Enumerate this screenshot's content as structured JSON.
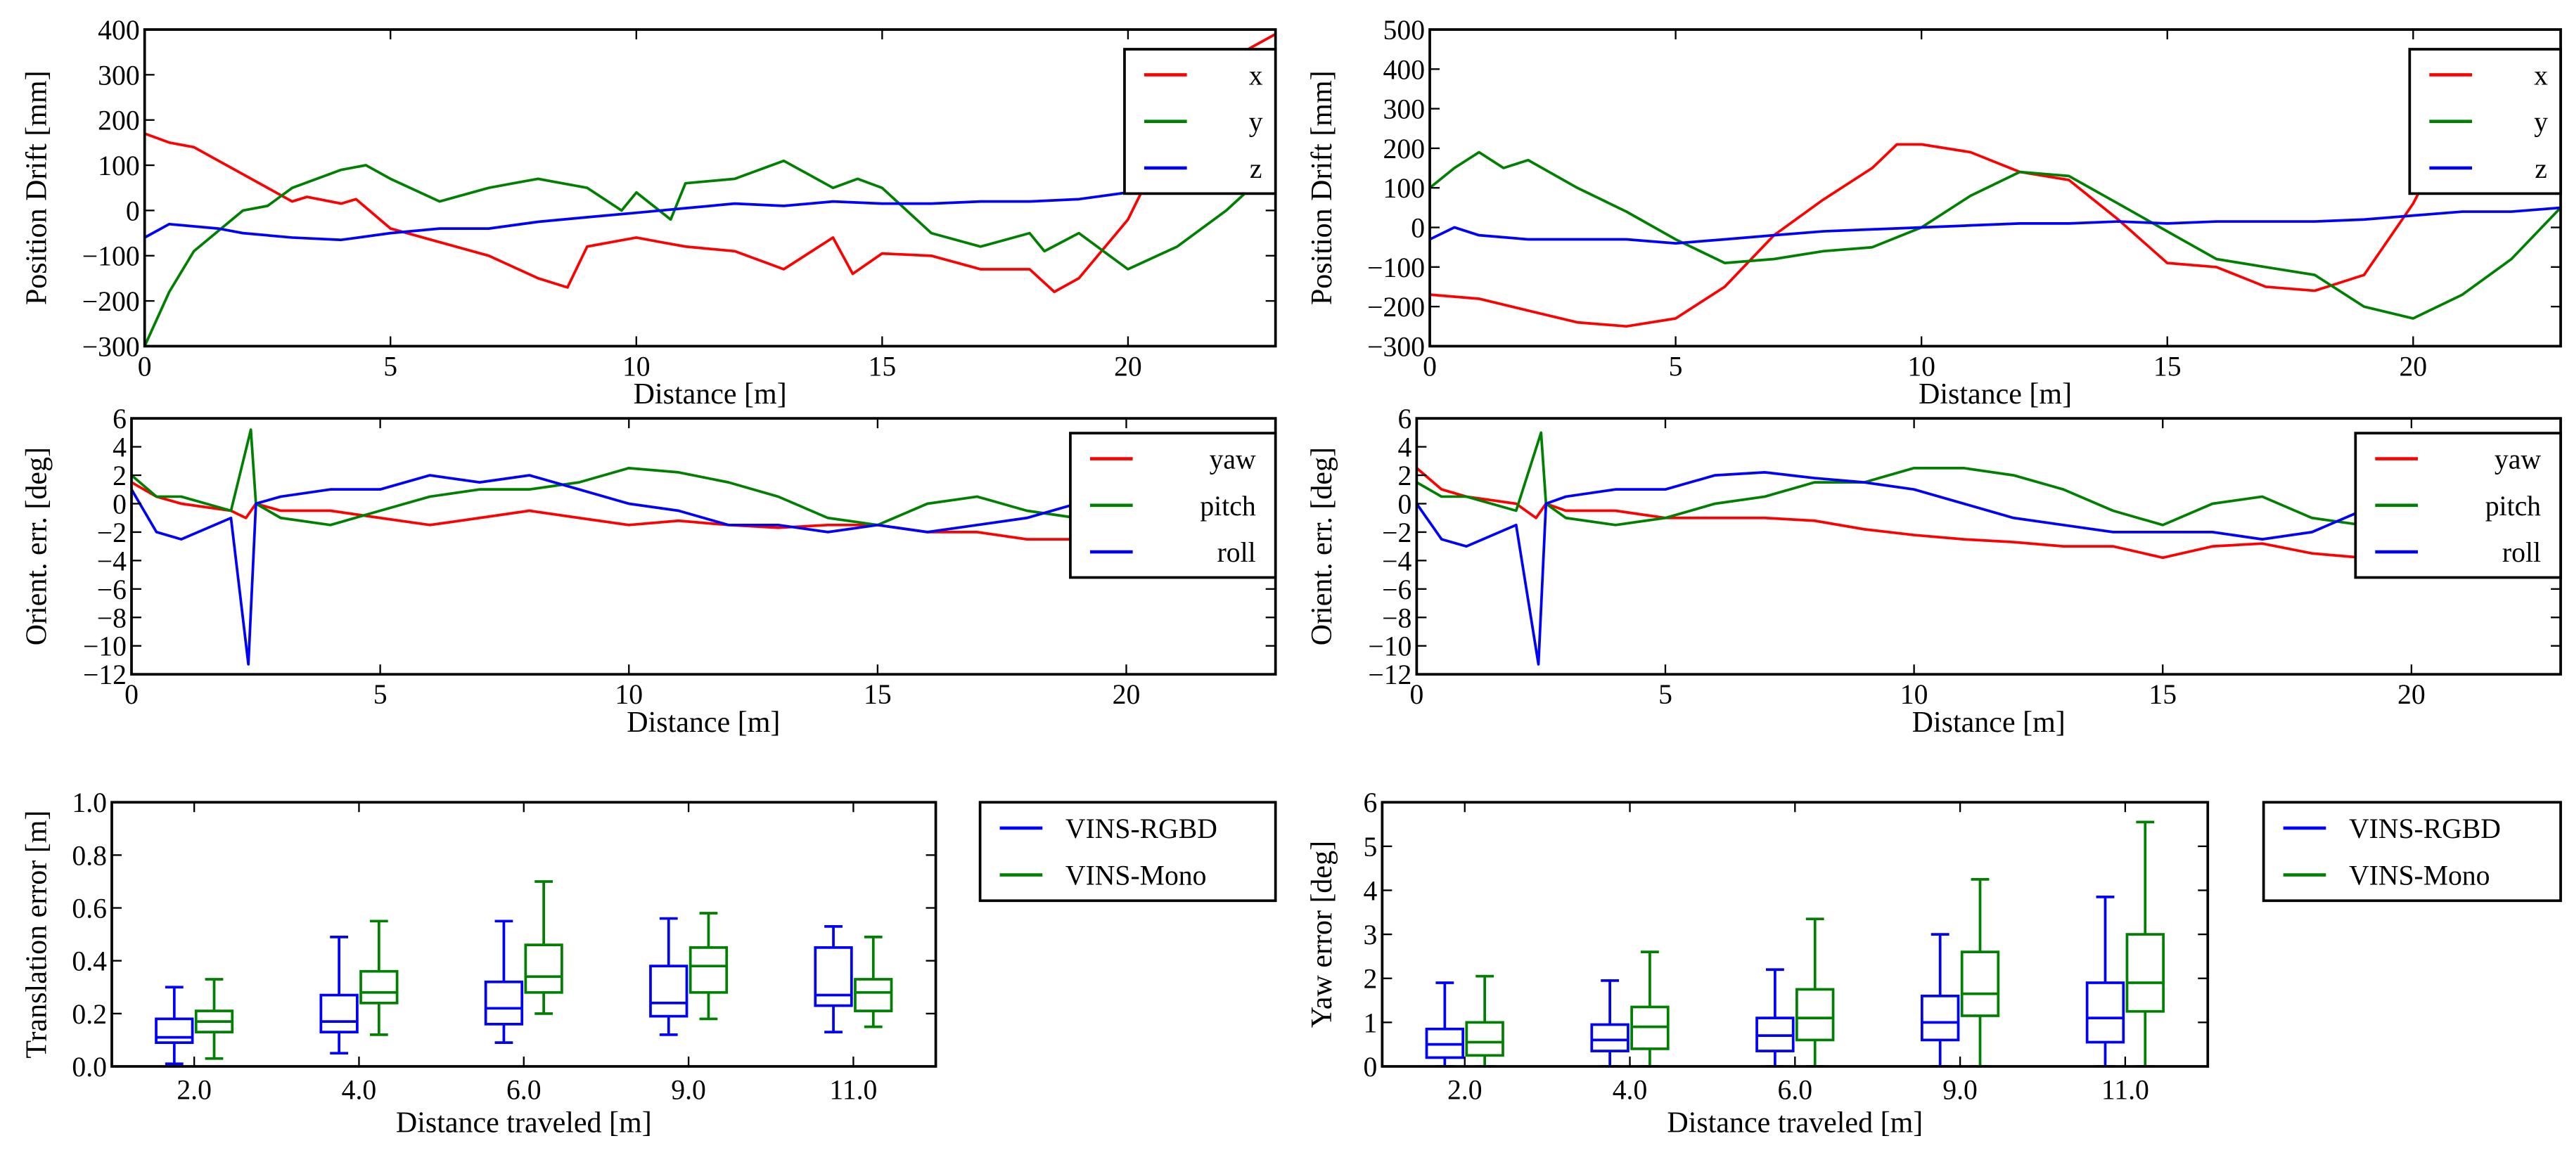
{
  "colors": {
    "red": "#ff0000",
    "green": "#008000",
    "blue": "#0000ff"
  },
  "chart_data": [
    {
      "type": "line",
      "xlabel": "Distance [m]",
      "ylabel": "Position Drift [mm]",
      "xlim": [
        0,
        23
      ],
      "ylim": [
        -300,
        400
      ],
      "xticks": [
        0,
        5,
        10,
        15,
        20
      ],
      "yticks": [
        -300,
        -200,
        -100,
        0,
        100,
        200,
        300,
        400
      ],
      "legend_position": "top-right",
      "series": [
        {
          "name": "x",
          "color": "#ff0000",
          "x": [
            0,
            0.5,
            1,
            2,
            3,
            3.3,
            4,
            4.3,
            5,
            6,
            7,
            8,
            8.6,
            9,
            10,
            10.5,
            11,
            12,
            13,
            14,
            14.4,
            15,
            16,
            17,
            18,
            18.5,
            19,
            20,
            21,
            22,
            23
          ],
          "y": [
            170,
            150,
            140,
            80,
            20,
            30,
            15,
            25,
            -40,
            -70,
            -100,
            -150,
            -170,
            -80,
            -60,
            -70,
            -80,
            -90,
            -130,
            -60,
            -140,
            -95,
            -100,
            -130,
            -130,
            -180,
            -150,
            -20,
            200,
            330,
            390
          ]
        },
        {
          "name": "y",
          "color": "#008000",
          "x": [
            0,
            0.5,
            1,
            2,
            2.5,
            3,
            4,
            4.5,
            5,
            6,
            7,
            7.5,
            8,
            9,
            9.7,
            10,
            10.7,
            11,
            12,
            13,
            14,
            14.5,
            15,
            16,
            17,
            18,
            18.3,
            19,
            20,
            21,
            22,
            23
          ],
          "y": [
            -300,
            -180,
            -90,
            0,
            10,
            50,
            90,
            100,
            70,
            20,
            50,
            60,
            70,
            50,
            0,
            40,
            -20,
            60,
            70,
            110,
            50,
            70,
            50,
            -50,
            -80,
            -50,
            -90,
            -50,
            -130,
            -80,
            0,
            100
          ]
        },
        {
          "name": "z",
          "color": "#0000ff",
          "x": [
            0,
            0.5,
            1.5,
            2,
            3,
            4,
            5,
            6,
            7,
            8,
            9,
            10,
            11,
            12,
            13,
            14,
            15,
            16,
            17,
            18,
            19,
            20,
            21,
            22,
            23
          ],
          "y": [
            -60,
            -30,
            -40,
            -50,
            -60,
            -65,
            -50,
            -40,
            -40,
            -25,
            -15,
            -5,
            5,
            15,
            10,
            20,
            15,
            15,
            20,
            20,
            25,
            40,
            50,
            60,
            80
          ]
        }
      ]
    },
    {
      "type": "line",
      "xlabel": "Distance [m]",
      "ylabel": "Position Drift [mm]",
      "xlim": [
        0,
        23
      ],
      "ylim": [
        -300,
        500
      ],
      "xticks": [
        0,
        5,
        10,
        15,
        20
      ],
      "yticks": [
        -300,
        -200,
        -100,
        0,
        100,
        200,
        300,
        400,
        500
      ],
      "legend_position": "top-right",
      "series": [
        {
          "name": "x",
          "color": "#ff0000",
          "x": [
            0,
            1,
            2,
            3,
            4,
            5,
            6,
            7,
            8,
            9,
            9.5,
            10,
            11,
            12,
            13,
            14,
            15,
            16,
            17,
            18,
            19,
            20,
            21,
            22,
            23
          ],
          "y": [
            -170,
            -180,
            -210,
            -240,
            -250,
            -230,
            -150,
            -20,
            70,
            150,
            210,
            210,
            190,
            140,
            120,
            20,
            -90,
            -100,
            -150,
            -160,
            -120,
            60,
            300,
            400,
            420
          ]
        },
        {
          "name": "y",
          "color": "#008000",
          "x": [
            0,
            0.5,
            1,
            1.5,
            2,
            3,
            4,
            5,
            6,
            7,
            8,
            9,
            10,
            11,
            12,
            13,
            14,
            15,
            16,
            17,
            18,
            19,
            20,
            21,
            22,
            23
          ],
          "y": [
            100,
            150,
            190,
            150,
            170,
            100,
            40,
            -30,
            -90,
            -80,
            -60,
            -50,
            0,
            80,
            140,
            130,
            60,
            -10,
            -80,
            -100,
            -120,
            -200,
            -230,
            -170,
            -80,
            50
          ]
        },
        {
          "name": "z",
          "color": "#0000ff",
          "x": [
            0,
            0.5,
            1,
            2,
            3,
            4,
            5,
            6,
            7,
            8,
            9,
            10,
            11,
            12,
            13,
            14,
            15,
            16,
            17,
            18,
            19,
            20,
            21,
            22,
            23
          ],
          "y": [
            -30,
            0,
            -20,
            -30,
            -30,
            -30,
            -40,
            -30,
            -20,
            -10,
            -5,
            0,
            5,
            10,
            10,
            15,
            10,
            15,
            15,
            15,
            20,
            30,
            40,
            40,
            50
          ]
        }
      ]
    },
    {
      "type": "line",
      "xlabel": "Distance [m]",
      "ylabel": "Orient. err. [deg]",
      "xlim": [
        0,
        23
      ],
      "ylim": [
        -12,
        6
      ],
      "xticks": [
        0,
        5,
        10,
        15,
        20
      ],
      "yticks": [
        -12,
        -10,
        -8,
        -6,
        -4,
        -2,
        0,
        2,
        4,
        6
      ],
      "legend_position": "top-right",
      "series": [
        {
          "name": "yaw",
          "color": "#ff0000",
          "x": [
            0,
            0.5,
            1,
            2,
            2.3,
            2.5,
            3,
            4,
            5,
            6,
            7,
            8,
            9,
            10,
            11,
            12,
            13,
            14,
            15,
            16,
            17,
            18,
            19,
            20,
            21,
            22,
            23
          ],
          "y": [
            1.5,
            0.5,
            0,
            -0.5,
            -1,
            0,
            -0.5,
            -0.5,
            -1,
            -1.5,
            -1,
            -0.5,
            -1,
            -1.5,
            -1.2,
            -1.5,
            -1.7,
            -1.5,
            -1.5,
            -2,
            -2,
            -2.5,
            -2.5,
            -2.5,
            -2.5,
            -2.5,
            -2
          ]
        },
        {
          "name": "pitch",
          "color": "#008000",
          "x": [
            0,
            0.5,
            1,
            2,
            2.4,
            2.5,
            3,
            4,
            5,
            6,
            7,
            8,
            9,
            10,
            11,
            12,
            13,
            14,
            15,
            16,
            17,
            18,
            19,
            20,
            21,
            22,
            23
          ],
          "y": [
            2,
            0.5,
            0.5,
            -0.5,
            5.2,
            0,
            -1,
            -1.5,
            -0.5,
            0.5,
            1,
            1,
            1.5,
            2.5,
            2.2,
            1.5,
            0.5,
            -1,
            -1.5,
            0,
            0.5,
            -0.5,
            -1,
            -0.5,
            0.5,
            2,
            2.5
          ]
        },
        {
          "name": "roll",
          "color": "#0000ff",
          "x": [
            0,
            0.5,
            1,
            2,
            2.35,
            2.5,
            3,
            4,
            5,
            6,
            7,
            8,
            9,
            10,
            11,
            12,
            13,
            14,
            15,
            16,
            17,
            18,
            19,
            20,
            21,
            22,
            23
          ],
          "y": [
            1,
            -2,
            -2.5,
            -1,
            -11.3,
            0,
            0.5,
            1,
            1,
            2,
            1.5,
            2,
            1,
            0,
            -0.5,
            -1.5,
            -1.5,
            -2,
            -1.5,
            -2,
            -1.5,
            -1,
            0,
            1.5,
            2,
            1,
            0
          ]
        }
      ]
    },
    {
      "type": "line",
      "xlabel": "Distance [m]",
      "ylabel": "Orient. err. [deg]",
      "xlim": [
        0,
        23
      ],
      "ylim": [
        -12,
        6
      ],
      "xticks": [
        0,
        5,
        10,
        15,
        20
      ],
      "yticks": [
        -12,
        -10,
        -8,
        -6,
        -4,
        -2,
        0,
        2,
        4,
        6
      ],
      "legend_position": "top-right",
      "series": [
        {
          "name": "yaw",
          "color": "#ff0000",
          "x": [
            0,
            0.5,
            1,
            2,
            2.4,
            2.6,
            3,
            4,
            5,
            6,
            7,
            8,
            9,
            10,
            11,
            12,
            13,
            14,
            15,
            16,
            17,
            18,
            19,
            20,
            21,
            22,
            23
          ],
          "y": [
            2.5,
            1,
            0.5,
            0,
            -1,
            0,
            -0.5,
            -0.5,
            -1,
            -1,
            -1,
            -1.2,
            -1.8,
            -2.2,
            -2.5,
            -2.7,
            -3,
            -3,
            -3.8,
            -3,
            -2.8,
            -3.5,
            -3.8,
            -4,
            -4,
            -4,
            -3.5
          ]
        },
        {
          "name": "pitch",
          "color": "#008000",
          "x": [
            0,
            0.5,
            1,
            2,
            2.5,
            2.6,
            3,
            4,
            5,
            6,
            7,
            8,
            9,
            10,
            11,
            12,
            13,
            14,
            15,
            16,
            17,
            18,
            19,
            20,
            21,
            22,
            23
          ],
          "y": [
            1.5,
            0.5,
            0.5,
            -0.5,
            5,
            0,
            -1,
            -1.5,
            -1,
            0,
            0.5,
            1.5,
            1.5,
            2.5,
            2.5,
            2,
            1,
            -0.5,
            -1.5,
            0,
            0.5,
            -1,
            -1.5,
            -1.5,
            0,
            2,
            2.5
          ]
        },
        {
          "name": "roll",
          "color": "#0000ff",
          "x": [
            0,
            0.5,
            1,
            2,
            2.45,
            2.6,
            3,
            4,
            5,
            6,
            7,
            8,
            9,
            10,
            11,
            12,
            13,
            14,
            15,
            16,
            17,
            18,
            19,
            20,
            21,
            22,
            23
          ],
          "y": [
            0,
            -2.5,
            -3,
            -1.5,
            -11.3,
            0,
            0.5,
            1,
            1,
            2,
            2.2,
            1.8,
            1.5,
            1,
            0,
            -1,
            -1.5,
            -2,
            -2,
            -2,
            -2.5,
            -2,
            -0.5,
            1,
            1.5,
            0.5,
            -0.5
          ]
        }
      ]
    },
    {
      "type": "box",
      "xlabel": "Distance traveled [m]",
      "ylabel": "Translation error [m]",
      "categories": [
        "2.0",
        "4.0",
        "6.0",
        "9.0",
        "11.0"
      ],
      "ylim": [
        0,
        1.0
      ],
      "yticks": [
        "0.0",
        "0.2",
        "0.4",
        "0.6",
        "0.8",
        "1.0"
      ],
      "legend_position": "outside-right",
      "series": [
        {
          "name": "VINS-RGBD",
          "color": "#0000ff",
          "boxes": [
            [
              0.01,
              0.09,
              0.11,
              0.18,
              0.3
            ],
            [
              0.05,
              0.13,
              0.17,
              0.27,
              0.49
            ],
            [
              0.09,
              0.16,
              0.22,
              0.32,
              0.55
            ],
            [
              0.12,
              0.19,
              0.24,
              0.38,
              0.56
            ],
            [
              0.13,
              0.23,
              0.27,
              0.45,
              0.53
            ]
          ]
        },
        {
          "name": "VINS-Mono",
          "color": "#008000",
          "boxes": [
            [
              0.03,
              0.13,
              0.17,
              0.21,
              0.33
            ],
            [
              0.12,
              0.24,
              0.28,
              0.36,
              0.55
            ],
            [
              0.2,
              0.28,
              0.34,
              0.46,
              0.7
            ],
            [
              0.18,
              0.28,
              0.38,
              0.45,
              0.58
            ],
            [
              0.15,
              0.21,
              0.28,
              0.33,
              0.49
            ]
          ]
        }
      ]
    },
    {
      "type": "box",
      "xlabel": "Distance traveled [m]",
      "ylabel": "Yaw error [deg]",
      "categories": [
        "2.0",
        "4.0",
        "6.0",
        "9.0",
        "11.0"
      ],
      "ylim": [
        0,
        6
      ],
      "yticks": [
        "0",
        "1",
        "2",
        "3",
        "4",
        "5",
        "6"
      ],
      "legend_position": "outside-right",
      "series": [
        {
          "name": "VINS-RGBD",
          "color": "#0000ff",
          "boxes": [
            [
              0,
              0.2,
              0.5,
              0.85,
              1.9
            ],
            [
              0,
              0.35,
              0.6,
              0.95,
              1.95
            ],
            [
              0,
              0.35,
              0.7,
              1.1,
              2.2
            ],
            [
              0,
              0.6,
              1.0,
              1.6,
              3.0
            ],
            [
              0,
              0.55,
              1.1,
              1.9,
              3.85
            ]
          ]
        },
        {
          "name": "VINS-Mono",
          "color": "#008000",
          "boxes": [
            [
              0,
              0.25,
              0.55,
              1.0,
              2.05
            ],
            [
              0,
              0.4,
              0.9,
              1.35,
              2.6
            ],
            [
              0,
              0.6,
              1.1,
              1.75,
              3.35
            ],
            [
              0,
              1.15,
              1.65,
              2.6,
              4.25
            ],
            [
              0,
              1.25,
              1.9,
              3.0,
              5.55
            ]
          ]
        }
      ]
    }
  ]
}
